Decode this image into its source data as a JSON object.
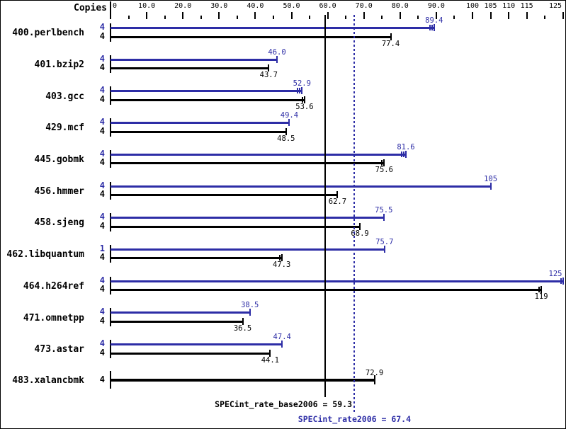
{
  "chart_data": {
    "type": "bar",
    "orientation": "horizontal",
    "title": "",
    "copies_header": "Copies",
    "xlim": [
      0,
      127
    ],
    "grid": false,
    "legend": null,
    "colors": {
      "peak": "#2d2da6",
      "base": "#000000"
    },
    "axis_tick_step": 5,
    "axis_labels": [
      {
        "v": 0,
        "t": "0"
      },
      {
        "v": 10,
        "t": "10.0"
      },
      {
        "v": 20,
        "t": "20.0"
      },
      {
        "v": 30,
        "t": "30.0"
      },
      {
        "v": 40,
        "t": "40.0"
      },
      {
        "v": 50,
        "t": "50.0"
      },
      {
        "v": 60,
        "t": "60.0"
      },
      {
        "v": 70,
        "t": "70.0"
      },
      {
        "v": 80,
        "t": "80.0"
      },
      {
        "v": 90,
        "t": "90.0"
      },
      {
        "v": 100,
        "t": "100"
      },
      {
        "v": 105,
        "t": "105"
      },
      {
        "v": 110,
        "t": "110"
      },
      {
        "v": 115,
        "t": "115"
      },
      {
        "v": 125,
        "t": "125"
      }
    ],
    "categories": [
      "400.perlbench",
      "401.bzip2",
      "403.gcc",
      "429.mcf",
      "445.gobmk",
      "456.hmmer",
      "458.sjeng",
      "462.libquantum",
      "464.h264ref",
      "471.omnetpp",
      "473.astar",
      "483.xalancbmk"
    ],
    "series": [
      {
        "name": "peak",
        "values": [
          89.4,
          46.0,
          52.9,
          49.4,
          81.6,
          105,
          75.5,
          75.7,
          125,
          38.5,
          47.4,
          null
        ]
      },
      {
        "name": "base",
        "values": [
          77.4,
          43.7,
          53.6,
          48.5,
          75.6,
          62.7,
          68.9,
          47.3,
          119,
          36.5,
          44.1,
          72.9
        ]
      }
    ],
    "benchmarks": [
      {
        "name": "400.perlbench",
        "peak": {
          "copies": "4",
          "value": 89.4,
          "label": "89.4",
          "marks": 2
        },
        "base": {
          "copies": "4",
          "value": 77.4,
          "label": "77.4",
          "marks": 0
        }
      },
      {
        "name": "401.bzip2",
        "peak": {
          "copies": "4",
          "value": 46.0,
          "label": "46.0",
          "marks": 0
        },
        "base": {
          "copies": "4",
          "value": 43.7,
          "label": "43.7",
          "marks": 0
        }
      },
      {
        "name": "403.gcc",
        "peak": {
          "copies": "4",
          "value": 52.9,
          "label": "52.9",
          "marks": 2
        },
        "base": {
          "copies": "4",
          "value": 53.6,
          "label": "53.6",
          "marks": 1
        }
      },
      {
        "name": "429.mcf",
        "peak": {
          "copies": "4",
          "value": 49.4,
          "label": "49.4",
          "marks": 0
        },
        "base": {
          "copies": "4",
          "value": 48.5,
          "label": "48.5",
          "marks": 0
        }
      },
      {
        "name": "445.gobmk",
        "peak": {
          "copies": "4",
          "value": 81.6,
          "label": "81.6",
          "marks": 2
        },
        "base": {
          "copies": "4",
          "value": 75.6,
          "label": "75.6",
          "marks": 1
        }
      },
      {
        "name": "456.hmmer",
        "peak": {
          "copies": "4",
          "value": 105,
          "label": "105",
          "marks": 0
        },
        "base": {
          "copies": "4",
          "value": 62.7,
          "label": "62.7",
          "marks": 0
        }
      },
      {
        "name": "458.sjeng",
        "peak": {
          "copies": "4",
          "value": 75.5,
          "label": "75.5",
          "marks": 0
        },
        "base": {
          "copies": "4",
          "value": 68.9,
          "label": "68.9",
          "marks": 0
        }
      },
      {
        "name": "462.libquantum",
        "peak": {
          "copies": "1",
          "value": 75.7,
          "label": "75.7",
          "marks": 0
        },
        "base": {
          "copies": "4",
          "value": 47.3,
          "label": "47.3",
          "marks": 1
        }
      },
      {
        "name": "464.h264ref",
        "peak": {
          "copies": "4",
          "value": 125,
          "label": "125",
          "marks": 1
        },
        "base": {
          "copies": "4",
          "value": 119,
          "label": "119",
          "marks": 1
        }
      },
      {
        "name": "471.omnetpp",
        "peak": {
          "copies": "4",
          "value": 38.5,
          "label": "38.5",
          "marks": 0
        },
        "base": {
          "copies": "4",
          "value": 36.5,
          "label": "36.5",
          "marks": 0
        }
      },
      {
        "name": "473.astar",
        "peak": {
          "copies": "4",
          "value": 47.4,
          "label": "47.4",
          "marks": 0
        },
        "base": {
          "copies": "4",
          "value": 44.1,
          "label": "44.1",
          "marks": 0
        }
      },
      {
        "name": "483.xalancbmk",
        "peak": null,
        "base": {
          "copies": "4",
          "value": 72.9,
          "label": "72.9",
          "marks": 0,
          "thick": true,
          "label_above": true
        }
      }
    ],
    "reference_lines": [
      {
        "name": "SPECint_rate_base2006",
        "value": 59.3,
        "label": "SPECint_rate_base2006 = 59.3",
        "style": "solid",
        "color": "#000000"
      },
      {
        "name": "SPECint_rate2006",
        "value": 67.4,
        "label": "SPECint_rate2006 = 67.4",
        "style": "dotted",
        "color": "#2d2da6"
      }
    ]
  }
}
